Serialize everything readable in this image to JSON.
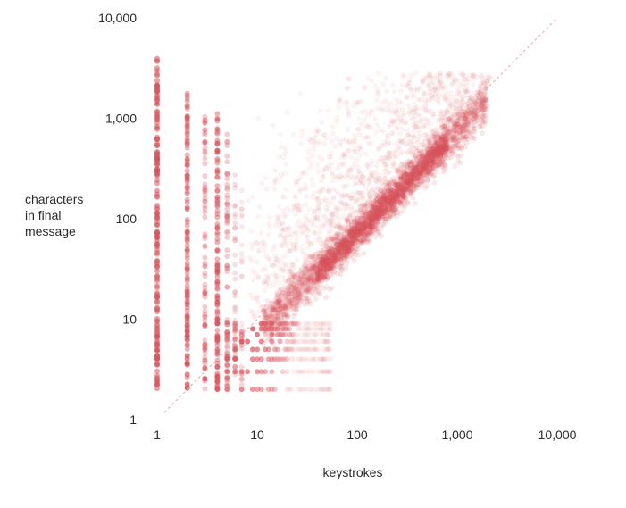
{
  "chart_data": {
    "type": "scatter",
    "xlabel": "keystrokes",
    "ylabel_lines": [
      "characters",
      "in final",
      "message"
    ],
    "xscale": "log",
    "yscale": "log",
    "xlim": [
      1,
      10000
    ],
    "ylim": [
      1,
      10000
    ],
    "x_ticks": [
      1,
      10,
      100,
      1000,
      10000
    ],
    "x_tick_labels": [
      "1",
      "10",
      "100",
      "1,000",
      "10,000"
    ],
    "y_ticks": [
      1,
      10,
      100,
      1000,
      10000
    ],
    "y_tick_labels": [
      "1",
      "10",
      "100",
      "1,000",
      "10,000"
    ],
    "reference_line": {
      "x": [
        1,
        10000
      ],
      "y": [
        1,
        10000
      ],
      "style": "dashed"
    },
    "marker_color": "#d9535c",
    "grid": false,
    "legend": "none"
  }
}
